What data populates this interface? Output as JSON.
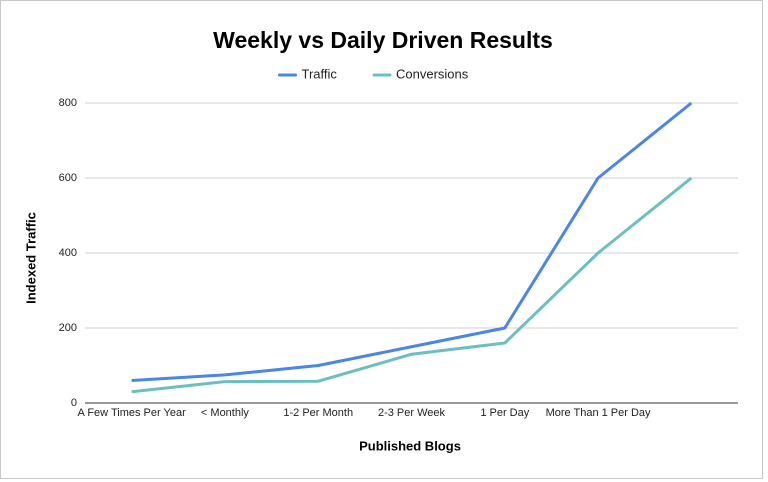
{
  "chart_data": {
    "type": "line",
    "title": "Weekly vs Daily Driven Results",
    "x_label": "Published Blogs",
    "y_label": "Indexed Traffic",
    "categories": [
      "A Few Times Per Year",
      "< Monthly",
      "1-2 Per Month",
      "2-3 Per Week",
      "1 Per Day",
      "More Than 1 Per Day",
      null
    ],
    "series": [
      {
        "name": "Traffic",
        "color": "#4a86e8",
        "values": [
          60,
          75,
          100,
          150,
          200,
          600,
          800
        ]
      },
      {
        "name": "Conversions",
        "color": "#6cbfc0",
        "values": [
          30,
          57,
          58,
          130,
          160,
          400,
          600
        ]
      }
    ],
    "ylim": [
      0,
      800
    ],
    "yticks": [
      0,
      200,
      400,
      600,
      800
    ],
    "grid": true,
    "legend": "top"
  }
}
